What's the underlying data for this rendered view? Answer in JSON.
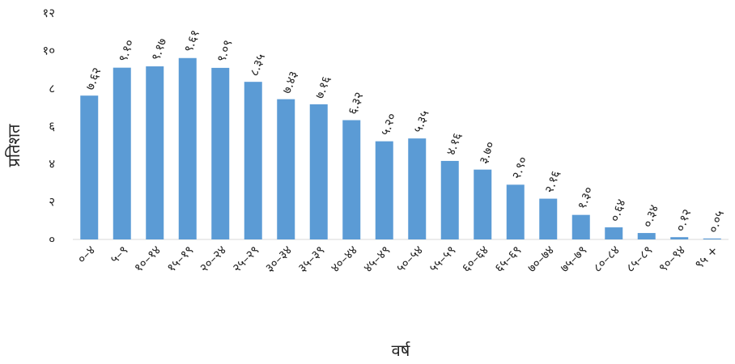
{
  "chart_data": {
    "type": "bar",
    "xlabel": "वर्ष",
    "ylabel": "प्रतिशत",
    "ylim": [
      0,
      12
    ],
    "yticks": [
      0,
      2,
      4,
      6,
      8,
      10,
      12
    ],
    "ytick_labels": [
      "०",
      "२",
      "४",
      "६",
      "८",
      "१०",
      "१२"
    ],
    "grid": false,
    "bar_color": "#5b9bd5",
    "categories": [
      "०–४",
      "५–९",
      "१०–१४",
      "१५–१९",
      "२०–२४",
      "२५–२९",
      "३०–३४",
      "३५–३९",
      "४०–४४",
      "४५–४९",
      "५०–५४",
      "५५–५९",
      "६०–६४",
      "६५–६९",
      "७०–७४",
      "७५–७९",
      "८०–८४",
      "८५–८९",
      "९०–९४",
      "९५ +"
    ],
    "values": [
      7.62,
      9.1,
      9.17,
      9.61,
      9.09,
      8.35,
      7.43,
      7.16,
      6.32,
      5.2,
      5.35,
      4.16,
      3.7,
      2.9,
      2.16,
      1.3,
      0.64,
      0.34,
      0.12,
      0.05
    ],
    "value_labels": [
      "७.६२",
      "९.१०",
      "९.१७",
      "९.६१",
      "९.०९",
      "८.३५",
      "७.४३",
      "७.१६",
      "६.३२",
      "५.२०",
      "५.३५",
      "४.१६",
      "३.७०",
      "२.९०",
      "२.१६",
      "१.३०",
      "०.६४",
      "०.३४",
      "०.१२",
      "०.०५"
    ]
  }
}
